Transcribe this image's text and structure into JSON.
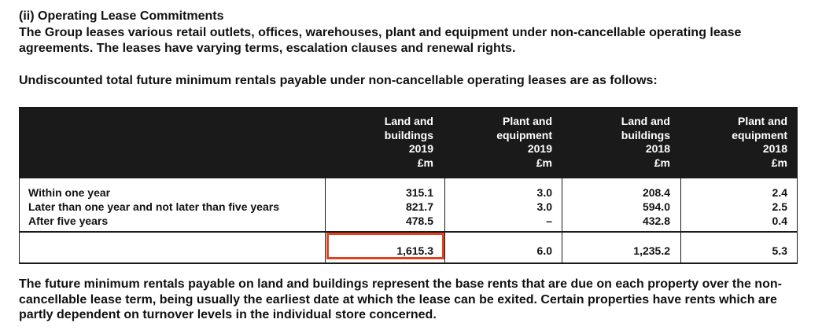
{
  "section_title": "(ii) Operating Lease Commitments",
  "intro_paragraph": "The Group leases various retail outlets, offices, warehouses, plant and equipment under non-cancellable operating lease agreements. The leases have varying terms, escalation clauses and renewal rights.",
  "table_intro": "Undiscounted total future minimum rentals payable under non-cancellable operating leases are as follows:",
  "table": {
    "headers": [
      "Land and\nbuildings\n2019\n£m",
      "Plant and\nequipment\n2019\n£m",
      "Land and\nbuildings\n2018\n£m",
      "Plant and\nequipment\n2018\n£m"
    ],
    "rows": [
      {
        "label": "Within one year",
        "values": [
          "315.1",
          "3.0",
          "208.4",
          "2.4"
        ]
      },
      {
        "label": "Later than one year and not later than five years",
        "values": [
          "821.7",
          "3.0",
          "594.0",
          "2.5"
        ]
      },
      {
        "label": "After five years",
        "values": [
          "478.5",
          "–",
          "432.8",
          "0.4"
        ]
      }
    ],
    "totals": [
      "1,615.3",
      "6.0",
      "1,235.2",
      "5.3"
    ],
    "highlighted_total": "1,615.3"
  },
  "closing_paragraph": "The future minimum rentals payable on land and buildings represent the base rents that are due on each property over the non-cancellable lease term, being usually the earliest date at which the lease can be exited. Certain properties have rents which are partly dependent on turnover levels in the individual store concerned.",
  "colors": {
    "header_background": "#1a1a1a",
    "highlight_border": "#e2401f"
  }
}
